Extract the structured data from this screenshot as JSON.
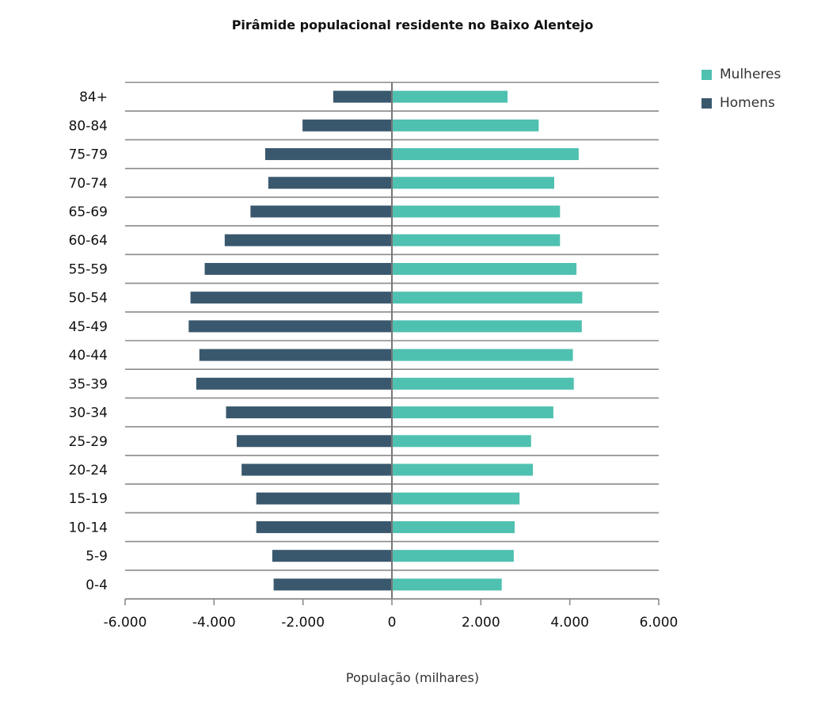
{
  "chart_data": {
    "type": "bar",
    "orientation": "horizontal",
    "title": "Pirâmide populacional residente no Baixo Alentejo",
    "xlabel": "População (milhares)",
    "ylabel": "",
    "categories": [
      "84+",
      "80-84",
      "75-79",
      "70-74",
      "65-69",
      "60-64",
      "55-59",
      "50-54",
      "45-49",
      "40-44",
      "35-39",
      "30-34",
      "25-29",
      "20-24",
      "15-19",
      "10-14",
      "5-9",
      "0-4"
    ],
    "series": [
      {
        "name": "Mulheres",
        "color": "#4fc1b1",
        "values": [
          2600,
          3300,
          4200,
          3650,
          3780,
          3780,
          4150,
          4280,
          4270,
          4070,
          4090,
          3630,
          3130,
          3170,
          2870,
          2760,
          2740,
          2470
        ]
      },
      {
        "name": "Homens",
        "color": "#3a586d",
        "values": [
          -1320,
          -2010,
          -2850,
          -2780,
          -3180,
          -3760,
          -4210,
          -4530,
          -4570,
          -4330,
          -4400,
          -3730,
          -3490,
          -3380,
          -3050,
          -3050,
          -2690,
          -2660
        ]
      }
    ],
    "xlim": [
      -6000,
      6000
    ],
    "xticks": [
      -6000,
      -4000,
      -2000,
      0,
      2000,
      4000,
      6000
    ],
    "xtick_labels": [
      "-6.000",
      "-4.000",
      "-2.000",
      "0",
      "2.000",
      "4.000",
      "6.000"
    ],
    "grid": true,
    "legend_position": "top-right"
  }
}
